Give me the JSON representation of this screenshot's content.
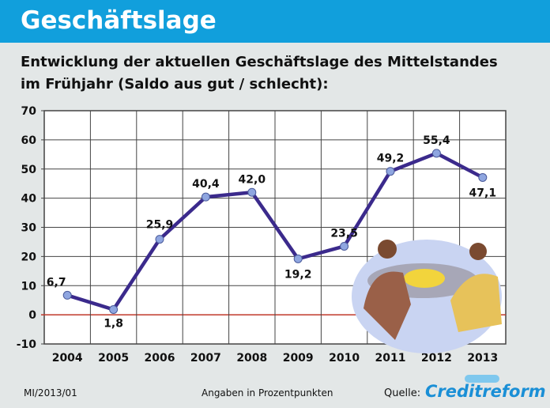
{
  "header": {
    "title": "Geschäftslage"
  },
  "subtitle": {
    "line1": "Entwicklung der aktuellen Geschäftslage des Mittelstandes",
    "line2": "im Frühjahr  (Saldo aus gut / schlecht):"
  },
  "chart_data": {
    "type": "line",
    "categories": [
      "2004",
      "2005",
      "2006",
      "2007",
      "2008",
      "2009",
      "2010",
      "2011",
      "2012",
      "2013"
    ],
    "values": [
      6.7,
      1.8,
      25.9,
      40.4,
      42.0,
      19.2,
      23.5,
      49.2,
      55.4,
      47.1
    ],
    "labels": [
      "6,7",
      "1,8",
      "25,9",
      "40,4",
      "42,0",
      "19,2",
      "23,5",
      "49,2",
      "55,4",
      "47,1"
    ],
    "ylim": [
      -10,
      70
    ],
    "yticks": [
      "-10",
      "0",
      "10",
      "20",
      "30",
      "40",
      "50",
      "60",
      "70"
    ],
    "grid": true,
    "line_color": "#3b2a8c",
    "zero_line_color": "#c0392b"
  },
  "footer": {
    "code": "MI/2013/01",
    "note": "Angaben in Prozentpunkten",
    "source_label": "Quelle:",
    "source_logo": "Creditreform"
  },
  "colors": {
    "header": "#119fdc",
    "background": "#e3e7e7"
  }
}
